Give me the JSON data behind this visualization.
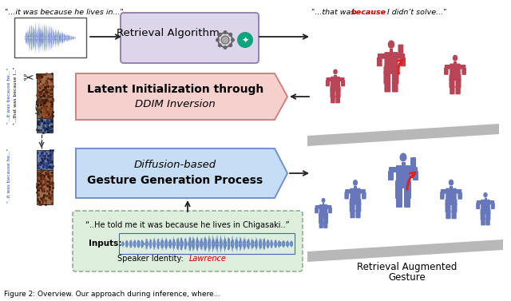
{
  "top_left_quote": "\"...it was because he lives in...\"",
  "top_right_quote_pre": "\"...that was ",
  "top_right_quote_keyword": "because",
  "top_right_quote_post": " I didn’t solve...\"",
  "retrieval_box_text": "Retrieval Algorithm",
  "latent_box_bold": "Latent Initialization",
  "latent_box_normal": " through",
  "latent_box_italic": "DDIM Inversion",
  "diffusion_box_italic": "Diffusion-based",
  "diffusion_box_bold": "Gesture Generation Process",
  "input_quote": "“..He told me it was because he lives in Chigasaki..”",
  "inputs_label": "Inputs:",
  "speaker_pre": "Speaker Identity: ",
  "speaker_name": "Lawrence",
  "retrieval_aug_line1": "Retrieval Augmented",
  "retrieval_aug_line2": "Gesture",
  "figure_caption": "Figure 2: Overview. Our approach during inference, where...",
  "retrieval_box_color": "#ddd5ea",
  "retrieval_box_border": "#9880b8",
  "latent_box_color": "#f5d0cc",
  "latent_box_border": "#d08080",
  "diffusion_box_color": "#c5ddf5",
  "diffusion_box_border": "#7090c8",
  "input_box_color": "#ddeedd",
  "input_box_border": "#88aa88",
  "bg_color": "#ffffff",
  "arrow_color": "#222222",
  "red_color": "#cc0000",
  "blue_text_color": "#2244cc",
  "keyword_color": "#cc0000",
  "waveform_color": "#4466bb",
  "red_figure_color": "#b84455",
  "blue_figure_color": "#6678bb",
  "shadow_color": "#cccccc"
}
